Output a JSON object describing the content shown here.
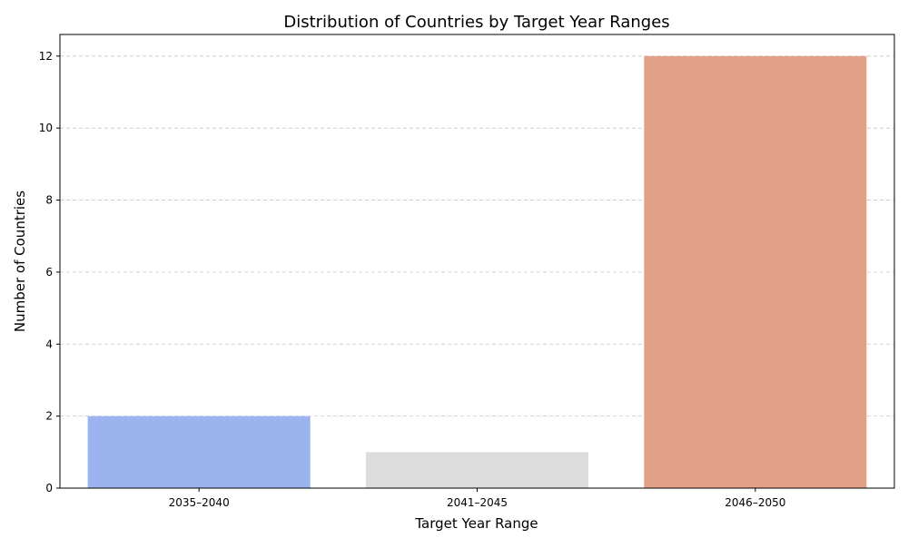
{
  "chart_data": {
    "type": "bar",
    "title": "Distribution of Countries by Target Year Ranges",
    "xlabel": "Target Year Range",
    "ylabel": "Number of Countries",
    "categories": [
      "2035–2040",
      "2041–2045",
      "2046–2050"
    ],
    "values": [
      2,
      1,
      12
    ],
    "colors": [
      "#9bb4f0",
      "#dcdcdc",
      "#e3a088"
    ],
    "ylim": [
      0,
      12.6
    ],
    "yticks": [
      0,
      2,
      4,
      6,
      8,
      10,
      12
    ],
    "grid": "y-dashed",
    "legend": "none"
  }
}
